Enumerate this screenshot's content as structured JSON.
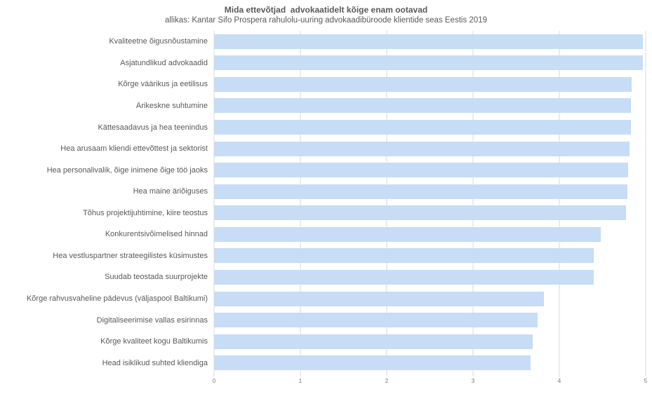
{
  "header": {
    "title": "Mida ettevõtjad  advokaatidelt kõige enam ootavad",
    "subtitle": "allikas: Kantar Sifo Prospera rahulolu-uuring advokaadibüroode klientide seas Eestis 2019"
  },
  "chart_data": {
    "type": "bar",
    "orientation": "horizontal",
    "title": "Mida ettevõtjad  advokaatidelt kõige enam ootavad",
    "subtitle": "allikas: Kantar Sifo Prospera rahulolu-uuring advokaadibüroode klientide seas Eestis 2019",
    "categories": [
      "Kvaliteetne õigusnõustamine",
      "Asjatundlikud advokaadid",
      "Kõrge väärikus ja eetilisus",
      "Ärikeskne suhtumine",
      "Kättesaadavus ja hea teenindus",
      "Hea arusaam kliendi ettevõttest ja sektorist",
      "Hea personalivalik, õige inimene õige töö jaoks",
      "Hea maine äriõiguses",
      "Tõhus projektijuhtimine, kiire teostus",
      "Konkurentsivõimelised hinnad",
      "Hea vestluspartner strateegilistes küsimustes",
      "Suudab teostada suurprojekte",
      "Kõrge rahvusvaheline pädevus (väljaspool Baltikumi)",
      "Digitaliseerimise vallas esirinnas",
      "Kõrge kvaliteet kogu Baltikumis",
      "Head isiklikud suhted kliendiga"
    ],
    "values": [
      4.97,
      4.97,
      4.84,
      4.83,
      4.83,
      4.81,
      4.8,
      4.79,
      4.77,
      4.48,
      4.4,
      4.4,
      3.82,
      3.75,
      3.69,
      3.67
    ],
    "xlabel": "",
    "ylabel": "",
    "xlim": [
      0,
      5
    ],
    "xticks": [
      0,
      1,
      2,
      3,
      4,
      5
    ],
    "grid": "vertical-gridlines-on",
    "legend": "none"
  },
  "colors": {
    "bar": "#c7dcf5",
    "grid": "#d9d9d9",
    "text": "#595959",
    "tick_text": "#737373",
    "background": "#ffffff"
  }
}
